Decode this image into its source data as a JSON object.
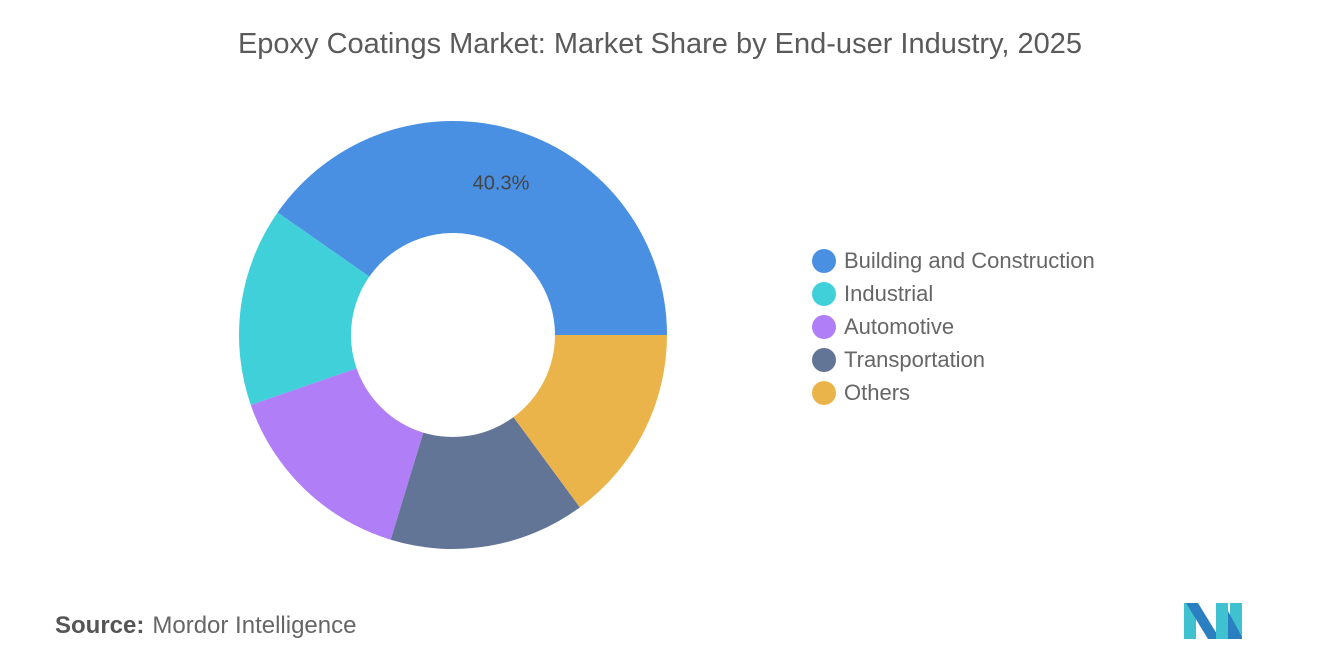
{
  "title": "Epoxy Coatings Market: Market Share by End-user Industry, 2025",
  "source_label": "Source:",
  "source_value": "Mordor Intelligence",
  "chart_data": {
    "type": "pie",
    "variant": "donut",
    "title": "Epoxy Coatings Market: Market Share by End-user Industry, 2025",
    "categories": [
      "Building and Construction",
      "Industrial",
      "Automotive",
      "Transportation",
      "Others"
    ],
    "values": [
      40.3,
      15.0,
      15.0,
      14.8,
      14.9
    ],
    "data_labels": [
      "40.3%",
      "",
      "",
      "",
      ""
    ],
    "colors": [
      "#4a90e2",
      "#40d0d9",
      "#b07ff7",
      "#627597",
      "#ebb44a"
    ],
    "legend_position": "right"
  }
}
